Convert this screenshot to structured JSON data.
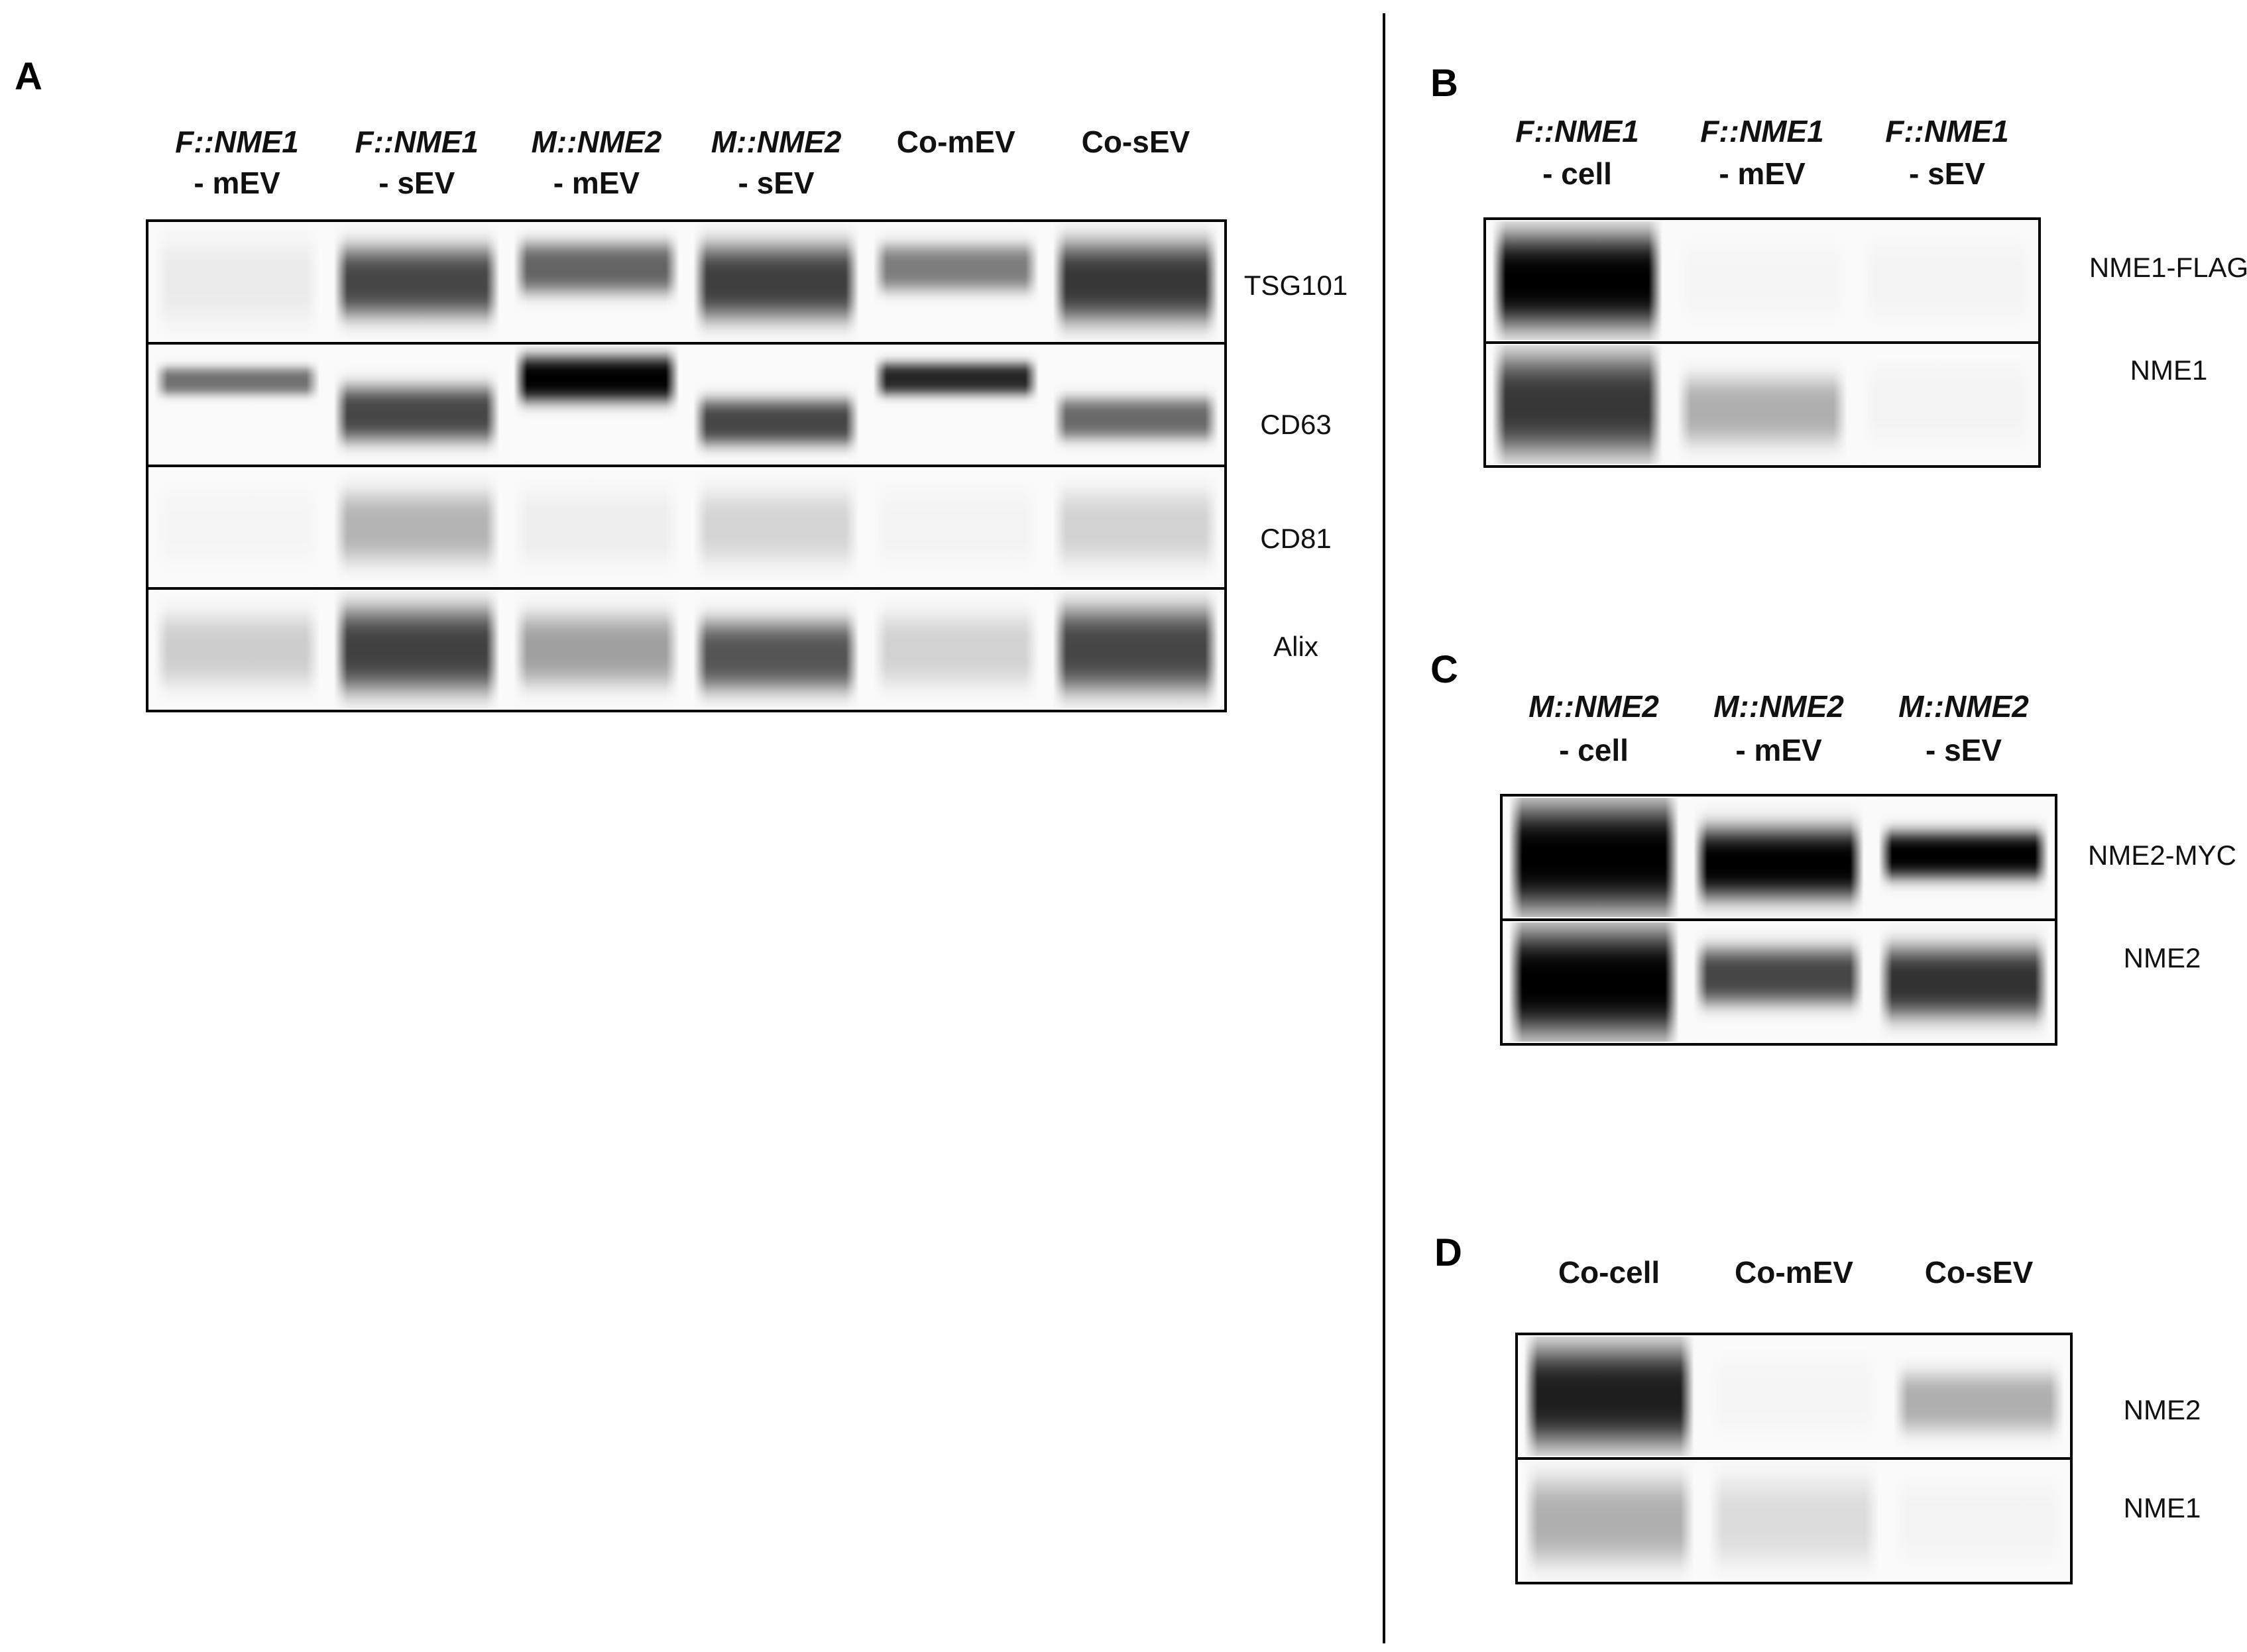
{
  "panels": [
    {
      "letter": "A",
      "lanes": [
        {
          "top": "F::NME1",
          "bottom": "- mEV",
          "italic": true
        },
        {
          "top": "F::NME1",
          "bottom": "- sEV",
          "italic": true
        },
        {
          "top": "M::NME2",
          "bottom": "- mEV",
          "italic": true
        },
        {
          "top": "M::NME2",
          "bottom": "- sEV",
          "italic": true
        },
        {
          "top": "Co-mEV",
          "bottom": "",
          "italic": false
        },
        {
          "top": "Co-sEV",
          "bottom": "",
          "italic": false
        }
      ],
      "rows": [
        {
          "label": "TSG101",
          "bands": [
            {
              "intensity": 0.06,
              "center": 0.5,
              "spread": 0.35
            },
            {
              "intensity": 0.72,
              "center": 0.5,
              "spread": 0.3
            },
            {
              "intensity": 0.6,
              "center": 0.38,
              "spread": 0.22
            },
            {
              "intensity": 0.75,
              "center": 0.5,
              "spread": 0.32
            },
            {
              "intensity": 0.5,
              "center": 0.38,
              "spread": 0.2
            },
            {
              "intensity": 0.78,
              "center": 0.5,
              "spread": 0.34
            }
          ]
        },
        {
          "label": "CD63",
          "bands": [
            {
              "intensity": 0.55,
              "center": 0.3,
              "spread": 0.12
            },
            {
              "intensity": 0.72,
              "center": 0.58,
              "spread": 0.24
            },
            {
              "intensity": 1.0,
              "center": 0.28,
              "spread": 0.2
            },
            {
              "intensity": 0.72,
              "center": 0.65,
              "spread": 0.2
            },
            {
              "intensity": 0.85,
              "center": 0.28,
              "spread": 0.14
            },
            {
              "intensity": 0.58,
              "center": 0.62,
              "spread": 0.18
            }
          ]
        },
        {
          "label": "CD81",
          "bands": [
            {
              "intensity": 0.02,
              "center": 0.5,
              "spread": 0.3
            },
            {
              "intensity": 0.28,
              "center": 0.5,
              "spread": 0.3
            },
            {
              "intensity": 0.05,
              "center": 0.5,
              "spread": 0.3
            },
            {
              "intensity": 0.15,
              "center": 0.5,
              "spread": 0.3
            },
            {
              "intensity": 0.03,
              "center": 0.5,
              "spread": 0.3
            },
            {
              "intensity": 0.16,
              "center": 0.5,
              "spread": 0.3
            }
          ]
        },
        {
          "label": "Alix",
          "bands": [
            {
              "intensity": 0.18,
              "center": 0.5,
              "spread": 0.3
            },
            {
              "intensity": 0.74,
              "center": 0.5,
              "spread": 0.36
            },
            {
              "intensity": 0.36,
              "center": 0.5,
              "spread": 0.3
            },
            {
              "intensity": 0.66,
              "center": 0.55,
              "spread": 0.3
            },
            {
              "intensity": 0.16,
              "center": 0.5,
              "spread": 0.3
            },
            {
              "intensity": 0.72,
              "center": 0.5,
              "spread": 0.36
            }
          ]
        }
      ]
    },
    {
      "letter": "B",
      "lanes": [
        {
          "top": "F::NME1",
          "bottom": "- cell",
          "italic": true
        },
        {
          "top": "F::NME1",
          "bottom": "- mEV",
          "italic": true
        },
        {
          "top": "F::NME1",
          "bottom": "- sEV",
          "italic": true
        }
      ],
      "rows": [
        {
          "label": "NME1-FLAG",
          "bands": [
            {
              "intensity": 1.0,
              "center": 0.5,
              "spread": 0.4
            },
            {
              "intensity": 0.02,
              "center": 0.5,
              "spread": 0.3
            },
            {
              "intensity": 0.03,
              "center": 0.5,
              "spread": 0.3
            }
          ]
        },
        {
          "label": "NME1",
          "bands": [
            {
              "intensity": 0.78,
              "center": 0.5,
              "spread": 0.42
            },
            {
              "intensity": 0.3,
              "center": 0.55,
              "spread": 0.28
            },
            {
              "intensity": 0.03,
              "center": 0.5,
              "spread": 0.3
            }
          ]
        }
      ]
    },
    {
      "letter": "C",
      "lanes": [
        {
          "top": "M::NME2",
          "bottom": "- cell",
          "italic": true
        },
        {
          "top": "M::NME2",
          "bottom": "- mEV",
          "italic": true
        },
        {
          "top": "M::NME2",
          "bottom": "- sEV",
          "italic": true
        }
      ],
      "rows": [
        {
          "label": "NME2-MYC",
          "bands": [
            {
              "intensity": 1.0,
              "center": 0.5,
              "spread": 0.45
            },
            {
              "intensity": 1.0,
              "center": 0.55,
              "spread": 0.3
            },
            {
              "intensity": 1.0,
              "center": 0.48,
              "spread": 0.2
            }
          ]
        },
        {
          "label": "NME2",
          "bands": [
            {
              "intensity": 1.0,
              "center": 0.5,
              "spread": 0.45
            },
            {
              "intensity": 0.72,
              "center": 0.45,
              "spread": 0.24
            },
            {
              "intensity": 0.8,
              "center": 0.5,
              "spread": 0.3
            }
          ]
        }
      ]
    },
    {
      "letter": "D",
      "lanes": [
        {
          "top": "Co-cell",
          "bottom": "",
          "italic": false
        },
        {
          "top": "Co-mEV",
          "bottom": "",
          "italic": false
        },
        {
          "top": "Co-sEV",
          "bottom": "",
          "italic": false
        }
      ],
      "rows": [
        {
          "label": "NME2",
          "bands": [
            {
              "intensity": 0.88,
              "center": 0.5,
              "spread": 0.42
            },
            {
              "intensity": 0.02,
              "center": 0.5,
              "spread": 0.3
            },
            {
              "intensity": 0.3,
              "center": 0.55,
              "spread": 0.25
            }
          ]
        },
        {
          "label": "NME1",
          "bands": [
            {
              "intensity": 0.3,
              "center": 0.5,
              "spread": 0.35
            },
            {
              "intensity": 0.12,
              "center": 0.5,
              "spread": 0.35
            },
            {
              "intensity": 0.03,
              "center": 0.5,
              "spread": 0.3
            }
          ]
        }
      ]
    }
  ]
}
